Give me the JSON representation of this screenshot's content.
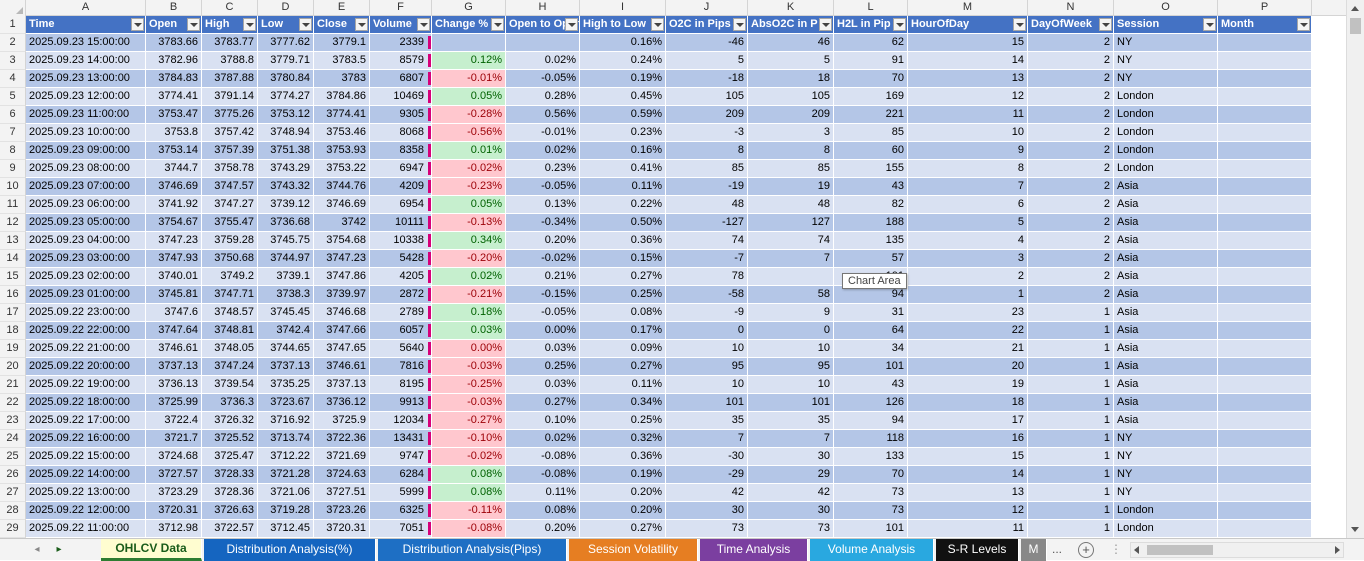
{
  "columns": [
    "A",
    "B",
    "C",
    "D",
    "E",
    "F",
    "G",
    "H",
    "I",
    "J",
    "K",
    "L",
    "M",
    "N",
    "O",
    "P"
  ],
  "headers": [
    "Time",
    "Open",
    "High",
    "Low",
    "Close",
    "Volume",
    "Change %",
    "Open to Open",
    "High to Low",
    "O2C in Pips",
    "AbsO2C in P",
    "H2L in Pip",
    "HourOfDay",
    "DayOfWeek",
    "Session",
    "Month"
  ],
  "rows": [
    [
      "2025.09.23 15:00:00",
      "3783.66",
      "3783.77",
      "3777.62",
      "3779.1",
      "2339",
      "",
      "",
      "0.16%",
      "-46",
      "46",
      "62",
      "15",
      "2",
      "NY",
      ""
    ],
    [
      "2025.09.23 14:00:00",
      "3782.96",
      "3788.8",
      "3779.71",
      "3783.5",
      "8579",
      "0.12%",
      "0.02%",
      "0.24%",
      "5",
      "5",
      "91",
      "14",
      "2",
      "NY",
      ""
    ],
    [
      "2025.09.23 13:00:00",
      "3784.83",
      "3787.88",
      "3780.84",
      "3783",
      "6807",
      "-0.01%",
      "-0.05%",
      "0.19%",
      "-18",
      "18",
      "70",
      "13",
      "2",
      "NY",
      ""
    ],
    [
      "2025.09.23 12:00:00",
      "3774.41",
      "3791.14",
      "3774.27",
      "3784.86",
      "10469",
      "0.05%",
      "0.28%",
      "0.45%",
      "105",
      "105",
      "169",
      "12",
      "2",
      "London",
      ""
    ],
    [
      "2025.09.23 11:00:00",
      "3753.47",
      "3775.26",
      "3753.12",
      "3774.41",
      "9305",
      "-0.28%",
      "0.56%",
      "0.59%",
      "209",
      "209",
      "221",
      "11",
      "2",
      "London",
      ""
    ],
    [
      "2025.09.23 10:00:00",
      "3753.8",
      "3757.42",
      "3748.94",
      "3753.46",
      "8068",
      "-0.56%",
      "-0.01%",
      "0.23%",
      "-3",
      "3",
      "85",
      "10",
      "2",
      "London",
      ""
    ],
    [
      "2025.09.23 09:00:00",
      "3753.14",
      "3757.39",
      "3751.38",
      "3753.93",
      "8358",
      "0.01%",
      "0.02%",
      "0.16%",
      "8",
      "8",
      "60",
      "9",
      "2",
      "London",
      ""
    ],
    [
      "2025.09.23 08:00:00",
      "3744.7",
      "3758.78",
      "3743.29",
      "3753.22",
      "6947",
      "-0.02%",
      "0.23%",
      "0.41%",
      "85",
      "85",
      "155",
      "8",
      "2",
      "London",
      ""
    ],
    [
      "2025.09.23 07:00:00",
      "3746.69",
      "3747.57",
      "3743.32",
      "3744.76",
      "4209",
      "-0.23%",
      "-0.05%",
      "0.11%",
      "-19",
      "19",
      "43",
      "7",
      "2",
      "Asia",
      ""
    ],
    [
      "2025.09.23 06:00:00",
      "3741.92",
      "3747.27",
      "3739.12",
      "3746.69",
      "6954",
      "0.05%",
      "0.13%",
      "0.22%",
      "48",
      "48",
      "82",
      "6",
      "2",
      "Asia",
      ""
    ],
    [
      "2025.09.23 05:00:00",
      "3754.67",
      "3755.47",
      "3736.68",
      "3742",
      "10111",
      "-0.13%",
      "-0.34%",
      "0.50%",
      "-127",
      "127",
      "188",
      "5",
      "2",
      "Asia",
      ""
    ],
    [
      "2025.09.23 04:00:00",
      "3747.23",
      "3759.28",
      "3745.75",
      "3754.68",
      "10338",
      "0.34%",
      "0.20%",
      "0.36%",
      "74",
      "74",
      "135",
      "4",
      "2",
      "Asia",
      ""
    ],
    [
      "2025.09.23 03:00:00",
      "3747.93",
      "3750.68",
      "3744.97",
      "3747.23",
      "5428",
      "-0.20%",
      "-0.02%",
      "0.15%",
      "-7",
      "7",
      "57",
      "3",
      "2",
      "Asia",
      ""
    ],
    [
      "2025.09.23 02:00:00",
      "3740.01",
      "3749.2",
      "3739.1",
      "3747.86",
      "4205",
      "0.02%",
      "0.21%",
      "0.27%",
      "78",
      "",
      "101",
      "2",
      "2",
      "Asia",
      ""
    ],
    [
      "2025.09.23 01:00:00",
      "3745.81",
      "3747.71",
      "3738.3",
      "3739.97",
      "2872",
      "-0.21%",
      "-0.15%",
      "0.25%",
      "-58",
      "58",
      "94",
      "1",
      "2",
      "Asia",
      ""
    ],
    [
      "2025.09.22 23:00:00",
      "3747.6",
      "3748.57",
      "3745.45",
      "3746.68",
      "2789",
      "0.18%",
      "-0.05%",
      "0.08%",
      "-9",
      "9",
      "31",
      "23",
      "1",
      "Asia",
      ""
    ],
    [
      "2025.09.22 22:00:00",
      "3747.64",
      "3748.81",
      "3742.4",
      "3747.66",
      "6057",
      "0.03%",
      "0.00%",
      "0.17%",
      "0",
      "0",
      "64",
      "22",
      "1",
      "Asia",
      ""
    ],
    [
      "2025.09.22 21:00:00",
      "3746.61",
      "3748.05",
      "3744.65",
      "3747.65",
      "5640",
      "0.00%",
      "0.03%",
      "0.09%",
      "10",
      "10",
      "34",
      "21",
      "1",
      "Asia",
      ""
    ],
    [
      "2025.09.22 20:00:00",
      "3737.13",
      "3747.24",
      "3737.13",
      "3746.61",
      "7816",
      "-0.03%",
      "0.25%",
      "0.27%",
      "95",
      "95",
      "101",
      "20",
      "1",
      "Asia",
      ""
    ],
    [
      "2025.09.22 19:00:00",
      "3736.13",
      "3739.54",
      "3735.25",
      "3737.13",
      "8195",
      "-0.25%",
      "0.03%",
      "0.11%",
      "10",
      "10",
      "43",
      "19",
      "1",
      "Asia",
      ""
    ],
    [
      "2025.09.22 18:00:00",
      "3725.99",
      "3736.3",
      "3723.67",
      "3736.12",
      "9913",
      "-0.03%",
      "0.27%",
      "0.34%",
      "101",
      "101",
      "126",
      "18",
      "1",
      "Asia",
      ""
    ],
    [
      "2025.09.22 17:00:00",
      "3722.4",
      "3726.32",
      "3716.92",
      "3725.9",
      "12034",
      "-0.27%",
      "0.10%",
      "0.25%",
      "35",
      "35",
      "94",
      "17",
      "1",
      "Asia",
      ""
    ],
    [
      "2025.09.22 16:00:00",
      "3721.7",
      "3725.52",
      "3713.74",
      "3722.36",
      "13431",
      "-0.10%",
      "0.02%",
      "0.32%",
      "7",
      "7",
      "118",
      "16",
      "1",
      "NY",
      ""
    ],
    [
      "2025.09.22 15:00:00",
      "3724.68",
      "3725.47",
      "3712.22",
      "3721.69",
      "9747",
      "-0.02%",
      "-0.08%",
      "0.36%",
      "-30",
      "30",
      "133",
      "15",
      "1",
      "NY",
      ""
    ],
    [
      "2025.09.22 14:00:00",
      "3727.57",
      "3728.33",
      "3721.28",
      "3724.63",
      "6284",
      "0.08%",
      "-0.08%",
      "0.19%",
      "-29",
      "29",
      "70",
      "14",
      "1",
      "NY",
      ""
    ],
    [
      "2025.09.22 13:00:00",
      "3723.29",
      "3728.36",
      "3721.06",
      "3727.51",
      "5999",
      "0.08%",
      "0.11%",
      "0.20%",
      "42",
      "42",
      "73",
      "13",
      "1",
      "NY",
      ""
    ],
    [
      "2025.09.22 12:00:00",
      "3720.31",
      "3726.63",
      "3719.28",
      "3723.26",
      "6325",
      "-0.11%",
      "0.08%",
      "0.20%",
      "30",
      "30",
      "73",
      "12",
      "1",
      "London",
      ""
    ],
    [
      "2025.09.22 11:00:00",
      "3712.98",
      "3722.57",
      "3712.45",
      "3720.31",
      "7051",
      "-0.08%",
      "0.20%",
      "0.27%",
      "73",
      "73",
      "101",
      "11",
      "1",
      "London",
      ""
    ]
  ],
  "tooltip": "Chart Area",
  "tabs": [
    {
      "label": "OHLCV Data",
      "color": "#fffdd0",
      "active": true
    },
    {
      "label": "Distribution Analysis(%)",
      "color": "#1565c0"
    },
    {
      "label": "Distribution Analysis(Pips)",
      "color": "#1e6fc4"
    },
    {
      "label": "Session Volatility",
      "color": "#e67e22"
    },
    {
      "label": "Time Analysis",
      "color": "#7b3fa0"
    },
    {
      "label": "Volume Analysis",
      "color": "#29a8e0"
    },
    {
      "label": "S-R Levels",
      "color": "#111111"
    },
    {
      "label": "M",
      "color": "#888888"
    }
  ],
  "tab_more": "...",
  "add_sheet": "+",
  "colors": {
    "header_fill": "#4472c4",
    "band_dark": "#b4c6e7",
    "band_light": "#d9e1f2",
    "pos_fill": "#c6efce",
    "neg_fill": "#ffc7ce",
    "volume_bar": "#d6007a"
  }
}
